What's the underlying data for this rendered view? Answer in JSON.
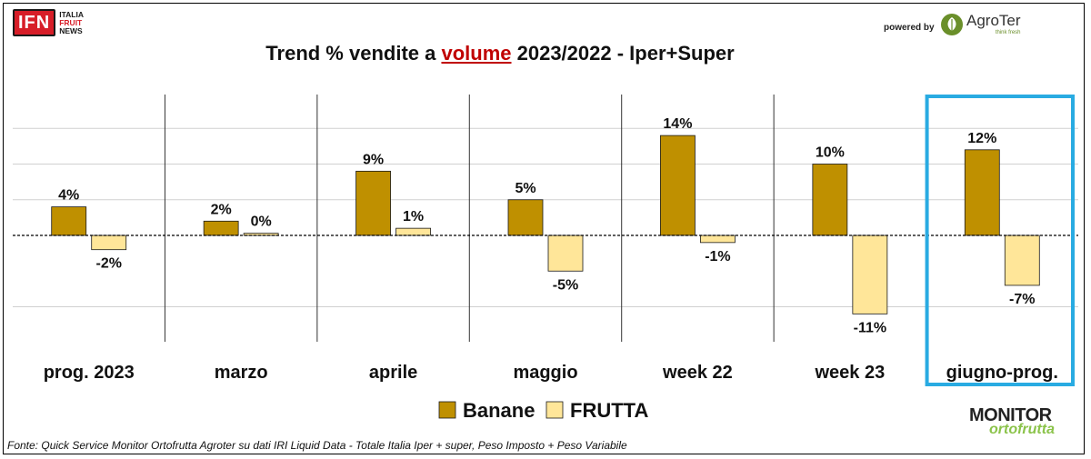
{
  "header": {
    "ifn_logo": "IFN",
    "ifn_line1": "ITALIA",
    "ifn_line2": "FRUIT",
    "ifn_line3": "NEWS",
    "powered_by": "powered by",
    "agroter_name": "AgroTer",
    "agroter_tagline": "think fresh"
  },
  "title": {
    "prefix": "Trend % vendite a ",
    "highlight": "volume",
    "suffix": " 2023/2022 - Iper+Super"
  },
  "footer": {
    "source": "Fonte: Quick Service Monitor Ortofrutta Agroter su dati IRI Liquid Data - Totale Italia Iper + super, Peso Imposto + Peso Variabile"
  },
  "monitor_logo": {
    "top": "MONITOR",
    "bottom": "ortofrutta"
  },
  "colors": {
    "banane": "#bf9000",
    "frutta": "#ffe699",
    "highlight_box": "#29abe2",
    "title_highlight": "#c00000"
  },
  "chart_data": {
    "type": "bar",
    "categories": [
      "prog. 2023",
      "marzo",
      "aprile",
      "maggio",
      "week 22",
      "week 23",
      "giugno-prog."
    ],
    "series": [
      {
        "name": "Banane",
        "values": [
          4,
          2,
          9,
          5,
          14,
          10,
          12
        ],
        "labels": [
          "4%",
          "2%",
          "9%",
          "5%",
          "14%",
          "10%",
          "12%"
        ]
      },
      {
        "name": "FRUTTA",
        "values": [
          -2,
          0.3,
          1,
          -5,
          -1,
          -11,
          -7
        ],
        "labels": [
          "-2%",
          "0%",
          "1%",
          "-5%",
          "-1%",
          "-11%",
          "-7%"
        ]
      }
    ],
    "highlighted_category": "giugno-prog.",
    "ylim": [
      -15,
      20
    ],
    "legend_position": "bottom",
    "grid": true
  }
}
